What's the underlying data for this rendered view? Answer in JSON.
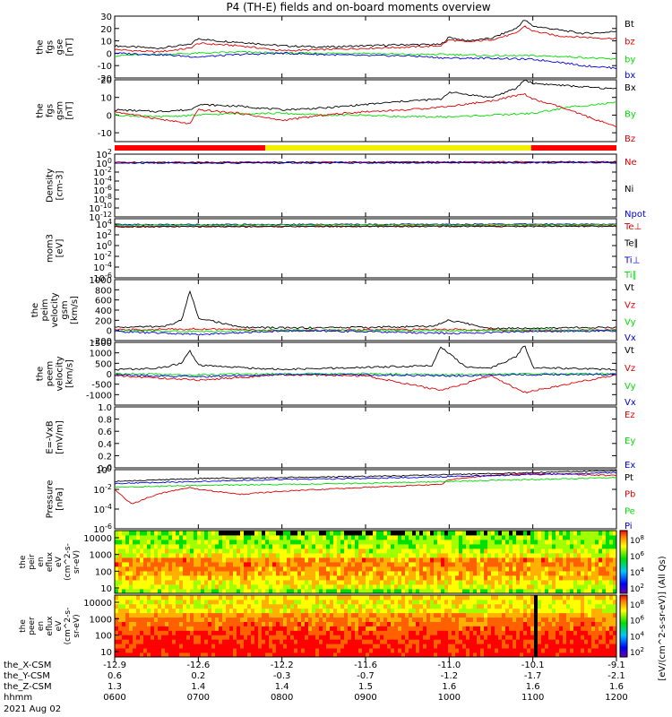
{
  "title": "P4 (TH-E) fields and on-board moments overview",
  "colors": {
    "black": "#000000",
    "red": "#e00000",
    "green": "#00dd00",
    "blue": "#0000e0",
    "yellow": "#f0f000",
    "red_bar": "#ff0000"
  },
  "time": {
    "start": "0600",
    "end": "1200",
    "hhmm_ticks": [
      "0600",
      "0700",
      "0800",
      "0900",
      "1000",
      "1100",
      "1200"
    ],
    "date": "2021 Aug 02",
    "row_labels": [
      "the_X-CSM",
      "the_Y-CSM",
      "the_Z-CSM",
      "hhmm"
    ],
    "x_csm": [
      "-12.9",
      "-12.6",
      "-12.2",
      "-11.6",
      "-11.0",
      "-10.1",
      "-9.1"
    ],
    "y_csm": [
      "0.6",
      "0.2",
      "-0.3",
      "-0.7",
      "-1.2",
      "-1.7",
      "-2.1"
    ],
    "z_csm": [
      "1.3",
      "1.4",
      "1.4",
      "1.5",
      "1.6",
      "1.6",
      "1.6"
    ]
  },
  "mode_bar": [
    {
      "from": 0.0,
      "to": 0.3,
      "color": "red"
    },
    {
      "from": 0.3,
      "to": 0.83,
      "color": "yellow"
    },
    {
      "from": 0.83,
      "to": 1.0,
      "color": "red"
    }
  ],
  "chart_data": [
    {
      "type": "line",
      "title": "P4 (TH-E) fields and on-board moments overview",
      "ylabel": [
        "the",
        "fgs",
        "gse",
        "[nT]"
      ],
      "ylim": [
        -20,
        30
      ],
      "yticks": [
        "30",
        "20",
        "10",
        "0",
        "-10",
        "-20"
      ],
      "series": [
        {
          "name": "Bt",
          "color": "black",
          "x_hours": [
            0,
            0.5,
            0.9,
            1.0,
            1.2,
            1.5,
            2.0,
            2.5,
            3.0,
            3.5,
            3.9,
            4.0,
            4.2,
            4.5,
            4.8,
            4.9,
            5.0,
            5.3,
            5.6,
            5.9,
            6.0
          ],
          "values": [
            6,
            4,
            7,
            12,
            10,
            9,
            6,
            5,
            6,
            7,
            7,
            13,
            10,
            12,
            20,
            27,
            22,
            19,
            16,
            17,
            18
          ]
        },
        {
          "name": "bz",
          "color": "red",
          "x_hours": [
            0,
            0.5,
            0.9,
            1.0,
            1.5,
            2.0,
            2.5,
            3.0,
            3.5,
            3.9,
            4.0,
            4.2,
            4.5,
            4.8,
            4.9,
            5.0,
            5.3,
            5.6,
            5.9,
            6.0
          ],
          "values": [
            3,
            1,
            4,
            8,
            6,
            2,
            3,
            4,
            5,
            6,
            11,
            9,
            11,
            16,
            22,
            18,
            14,
            13,
            12,
            12
          ]
        },
        {
          "name": "by",
          "color": "green",
          "x_hours": [
            0,
            0.5,
            1.0,
            1.5,
            2.0,
            2.5,
            3.0,
            3.5,
            4.0,
            4.5,
            5.0,
            5.5,
            6.0
          ],
          "values": [
            -2,
            -1,
            0,
            1,
            0,
            0,
            0,
            -1,
            -1,
            -2,
            -2,
            -3,
            -5
          ]
        },
        {
          "name": "bx",
          "color": "blue",
          "x_hours": [
            0,
            0.5,
            1.0,
            1.5,
            2.0,
            2.5,
            3.0,
            3.5,
            4.0,
            4.5,
            5.0,
            5.3,
            5.6,
            6.0
          ],
          "values": [
            0,
            -1,
            -3,
            -1,
            0,
            -1,
            -2,
            -2,
            -4,
            -4,
            -5,
            -7,
            -10,
            -12
          ]
        }
      ]
    },
    {
      "type": "line",
      "ylabel": [
        "the",
        "fgs",
        "gsm",
        "[nT]"
      ],
      "ylim": [
        -15,
        20
      ],
      "yticks": [
        "20",
        "10",
        "0",
        "-10"
      ],
      "series": [
        {
          "name": "Bx",
          "color": "black",
          "x_hours": [
            0,
            0.5,
            0.9,
            1.0,
            1.5,
            2.0,
            2.5,
            3.0,
            3.5,
            3.9,
            4.0,
            4.5,
            4.8,
            4.9,
            5.0,
            5.3,
            5.6,
            5.9,
            6.0
          ],
          "values": [
            3,
            2,
            3,
            6,
            5,
            3,
            4,
            6,
            8,
            9,
            13,
            10,
            15,
            20,
            18,
            17,
            16,
            15,
            15
          ]
        },
        {
          "name": "By",
          "color": "green",
          "x_hours": [
            0,
            0.5,
            1.0,
            1.5,
            2.0,
            2.5,
            3.0,
            3.5,
            4.0,
            4.5,
            5.0,
            5.5,
            6.0
          ],
          "values": [
            0,
            -1,
            0,
            1,
            1,
            0,
            0,
            -1,
            -1,
            0,
            1,
            5,
            7
          ]
        },
        {
          "name": "Bz",
          "color": "red",
          "x_hours": [
            0,
            0.5,
            0.9,
            1.0,
            1.5,
            2.0,
            2.5,
            3.0,
            3.5,
            4.0,
            4.5,
            4.9,
            5.0,
            5.3,
            5.6,
            5.9,
            6.0
          ],
          "values": [
            2,
            -2,
            -5,
            3,
            1,
            -3,
            0,
            2,
            3,
            5,
            8,
            12,
            9,
            5,
            0,
            -5,
            -7
          ]
        }
      ]
    },
    {
      "type": "line",
      "scale": "log",
      "ylabel": [
        "Density",
        "[cm-3]"
      ],
      "ylim_exp": [
        -12,
        2
      ],
      "yticks": [
        "10^2",
        "10^0",
        "10^-2",
        "10^-4",
        "10^-6",
        "10^-8",
        "10^-10",
        "10^-12"
      ],
      "series": [
        {
          "name": "Ne",
          "color": "red",
          "x_hours": [
            0,
            6
          ],
          "values_log10": [
            0.2,
            0.3
          ]
        },
        {
          "name": "Ni",
          "color": "black",
          "x_hours": [
            0,
            6
          ],
          "values_log10": [
            0.1,
            0.2
          ]
        },
        {
          "name": "Npot",
          "color": "blue",
          "x_hours": [
            0,
            6
          ],
          "values_log10": [
            0.0,
            0.1
          ]
        }
      ]
    },
    {
      "type": "line",
      "scale": "log",
      "ylabel": [
        "mom3",
        "[eV]"
      ],
      "ylim_exp": [
        -6,
        5
      ],
      "yticks": [
        "10^4",
        "10^2",
        "10^0",
        "10^-2",
        "10^-4",
        "10^-6"
      ],
      "series": [
        {
          "name": "Te⊥",
          "color": "red",
          "x_hours": [
            0,
            6
          ],
          "values_log10": [
            3.6,
            3.7
          ]
        },
        {
          "name": "Te∥",
          "color": "black",
          "x_hours": [
            0,
            6
          ],
          "values_log10": [
            3.5,
            3.6
          ]
        },
        {
          "name": "Ti⊥",
          "color": "blue",
          "x_hours": [
            0,
            6
          ],
          "values_log10": [
            3.9,
            4.0
          ]
        },
        {
          "name": "Ti∥",
          "color": "green",
          "x_hours": [
            0,
            6
          ],
          "values_log10": [
            3.8,
            3.9
          ]
        }
      ]
    },
    {
      "type": "line",
      "ylabel": [
        "the",
        "peim",
        "velocity",
        "gsm",
        "[km/s]"
      ],
      "ylim": [
        -200,
        1000
      ],
      "yticks": [
        "1000",
        "800",
        "600",
        "400",
        "200",
        "0",
        "-200"
      ],
      "series": [
        {
          "name": "Vt",
          "color": "black",
          "x_hours": [
            0,
            0.6,
            0.8,
            0.9,
            1.0,
            1.5,
            2.0,
            3.0,
            3.8,
            4.0,
            4.5,
            5.0,
            6.0
          ],
          "values": [
            60,
            80,
            200,
            780,
            250,
            60,
            50,
            60,
            80,
            200,
            40,
            50,
            60
          ]
        },
        {
          "name": "Vz",
          "color": "red",
          "x_hours": [
            0,
            1,
            2,
            3,
            4,
            5,
            6
          ],
          "values": [
            10,
            30,
            0,
            10,
            20,
            0,
            10
          ]
        },
        {
          "name": "Vy",
          "color": "green",
          "x_hours": [
            0,
            1,
            2,
            3,
            4,
            5,
            6
          ],
          "values": [
            0,
            -20,
            10,
            0,
            -10,
            10,
            0
          ]
        },
        {
          "name": "Vx",
          "color": "blue",
          "x_hours": [
            0,
            1,
            2,
            3,
            4,
            5,
            6
          ],
          "values": [
            -20,
            -80,
            -10,
            -20,
            -60,
            -20,
            -10
          ]
        }
      ]
    },
    {
      "type": "line",
      "ylabel": [
        "the",
        "peem",
        "velocity",
        "[km/s]"
      ],
      "ylim": [
        -1500,
        1500
      ],
      "yticks": [
        "1500",
        "1000",
        "500",
        "0",
        "-500",
        "-1000"
      ],
      "series": [
        {
          "name": "Vt",
          "color": "black",
          "x_hours": [
            0,
            0.5,
            0.8,
            0.9,
            1.0,
            1.5,
            2.0,
            2.5,
            3.0,
            3.8,
            3.9,
            4.2,
            4.5,
            4.8,
            4.9,
            5.0,
            6.0
          ],
          "values": [
            200,
            250,
            500,
            1100,
            400,
            300,
            200,
            250,
            300,
            400,
            1300,
            300,
            300,
            800,
            1400,
            300,
            200
          ]
        },
        {
          "name": "Vz",
          "color": "red",
          "x_hours": [
            0,
            1,
            2,
            3,
            3.9,
            4.5,
            4.9,
            6
          ],
          "values": [
            -100,
            -300,
            -50,
            -100,
            -800,
            -100,
            -900,
            -50
          ]
        },
        {
          "name": "Vy",
          "color": "green",
          "x_hours": [
            0,
            1,
            2,
            3,
            4,
            5,
            6
          ],
          "values": [
            0,
            -50,
            0,
            0,
            -50,
            0,
            0
          ]
        },
        {
          "name": "Vx",
          "color": "blue",
          "x_hours": [
            0,
            1,
            2,
            3,
            4,
            5,
            6
          ],
          "values": [
            -50,
            -150,
            -30,
            -50,
            -100,
            -50,
            -30
          ]
        }
      ]
    },
    {
      "type": "line",
      "ylabel": [
        "E=-VxB",
        "[mV/m]"
      ],
      "ylim": [
        0,
        1.0
      ],
      "yticks": [
        "1.0",
        "0.8",
        "0.6",
        "0.4",
        "0.2",
        "0.0"
      ],
      "series": [
        {
          "name": "Ez",
          "color": "red",
          "x_hours": [],
          "values": []
        },
        {
          "name": "Ey",
          "color": "green",
          "x_hours": [],
          "values": []
        },
        {
          "name": "Ex",
          "color": "blue",
          "x_hours": [],
          "values": []
        }
      ]
    },
    {
      "type": "line",
      "scale": "log",
      "ylabel": [
        "Pressure",
        "[nPa]"
      ],
      "ylim_exp": [
        -6,
        0
      ],
      "yticks": [
        "10^0",
        "10^-2",
        "10^-4",
        "10^-6"
      ],
      "series": [
        {
          "name": "Pt",
          "color": "black",
          "x_hours": [
            0,
            1,
            2,
            3,
            4,
            5,
            6
          ],
          "values_log10": [
            -1.2,
            -0.9,
            -0.8,
            -0.7,
            -0.5,
            -0.3,
            -0.1
          ]
        },
        {
          "name": "Pb",
          "color": "red",
          "x_hours": [
            0,
            0.2,
            0.5,
            0.9,
            1.0,
            1.5,
            2.0,
            3.0,
            3.9,
            4.0,
            4.5,
            5.0,
            5.5,
            6.0
          ],
          "values_log10": [
            -2.0,
            -3.5,
            -2.5,
            -1.8,
            -2.0,
            -2.5,
            -2.2,
            -1.8,
            -1.5,
            -1.0,
            -0.6,
            -0.4,
            -0.5,
            -0.6
          ]
        },
        {
          "name": "Pe",
          "color": "green",
          "x_hours": [
            0,
            1,
            2,
            3,
            4,
            5,
            6
          ],
          "values_log10": [
            -1.8,
            -1.6,
            -1.5,
            -1.4,
            -1.2,
            -1.0,
            -0.8
          ]
        },
        {
          "name": "Pi",
          "color": "blue",
          "x_hours": [
            0,
            1,
            2,
            3,
            4,
            5,
            6
          ],
          "values_log10": [
            -1.4,
            -1.2,
            -1.0,
            -0.9,
            -0.7,
            -0.5,
            -0.3
          ]
        }
      ]
    },
    {
      "type": "heatmap",
      "ylabel": [
        "the",
        "peir",
        "en",
        "eflux",
        "eV",
        "(cm^2-s-",
        "sr-eV)"
      ],
      "yticks": [
        "10000",
        "1000",
        "100",
        "10"
      ],
      "colorbar_ticks": [
        "10^8",
        "10^6",
        "10^4",
        "10^2"
      ],
      "colorbar_label": "[eV/(cm^2-s-sr-eV)] (All Qs)"
    },
    {
      "type": "heatmap",
      "ylabel": [
        "the",
        "peer",
        "en",
        "eflux",
        "eV",
        "(cm^2-s-",
        "sr-eV)"
      ],
      "yticks": [
        "10000",
        "1000",
        "100",
        "10"
      ],
      "colorbar_ticks": [
        "10^8",
        "10^6",
        "10^4",
        "10^2"
      ],
      "colorbar_label": "[eV/(cm^2-s-sr-eV)] (All Qs)"
    }
  ]
}
